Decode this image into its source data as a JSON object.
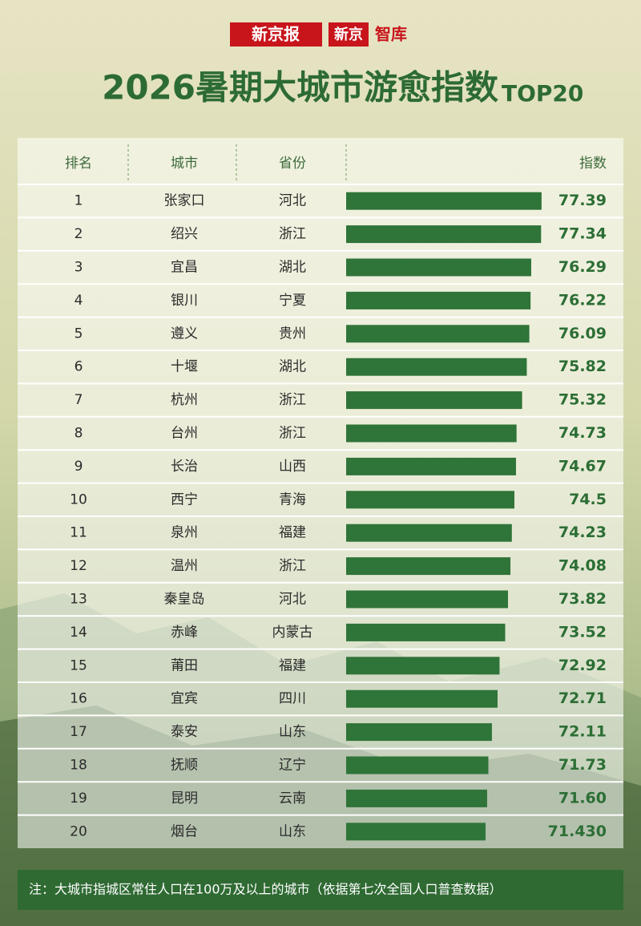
{
  "header": {
    "brands": [
      "新京报",
      "新京",
      "智库"
    ]
  },
  "chart_data": {
    "type": "bar",
    "orientation": "horizontal",
    "title": "2026暑期大城市游愈指数",
    "title_suffix": "TOP20",
    "columns": [
      "排名",
      "城市",
      "省份",
      "指数"
    ],
    "ranks": [
      1,
      2,
      3,
      4,
      5,
      6,
      7,
      8,
      9,
      10,
      11,
      12,
      13,
      14,
      15,
      16,
      17,
      18,
      19,
      20
    ],
    "categories": [
      "张家口",
      "绍兴",
      "宜昌",
      "银川",
      "遵义",
      "十堰",
      "杭州",
      "台州",
      "长治",
      "西宁",
      "泉州",
      "温州",
      "秦皇岛",
      "赤峰",
      "莆田",
      "宜宾",
      "泰安",
      "抚顺",
      "昆明",
      "烟台"
    ],
    "provinces": [
      "河北",
      "浙江",
      "湖北",
      "宁夏",
      "贵州",
      "湖北",
      "浙江",
      "浙江",
      "山西",
      "青海",
      "福建",
      "浙江",
      "河北",
      "内蒙古",
      "福建",
      "四川",
      "山东",
      "辽宁",
      "云南",
      "山东"
    ],
    "values": [
      77.39,
      77.34,
      76.29,
      76.22,
      76.09,
      75.82,
      75.32,
      74.73,
      74.67,
      74.5,
      74.23,
      74.08,
      73.82,
      73.52,
      72.92,
      72.71,
      72.11,
      71.73,
      71.6,
      71.43
    ],
    "value_labels": [
      "77.39",
      "77.34",
      "76.29",
      "76.22",
      "76.09",
      "75.82",
      "75.32",
      "74.73",
      "74.67",
      "74.5",
      "74.23",
      "74.08",
      "73.82",
      "73.52",
      "72.92",
      "72.71",
      "72.11",
      "71.73",
      "71.60",
      "71.430"
    ],
    "color": "#2f7438",
    "xlim": [
      56.6,
      77.4
    ],
    "note": "注：大城市指城区常住人口在100万及以上的城市（依据第七次全国人口普查数据）"
  }
}
